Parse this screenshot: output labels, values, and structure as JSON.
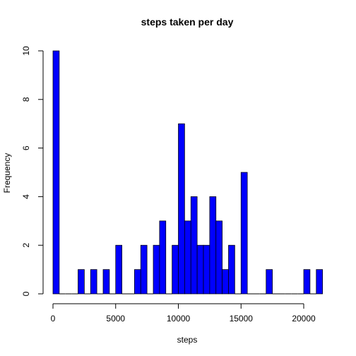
{
  "chart_data": {
    "type": "bar",
    "title": "steps taken per day",
    "xlabel": "steps",
    "ylabel": "Frequency",
    "bin_width": 500,
    "x_start": 0,
    "xlim": [
      0,
      21500
    ],
    "ylim": [
      0,
      10
    ],
    "x_ticks": [
      0,
      5000,
      10000,
      15000,
      20000
    ],
    "y_ticks": [
      0,
      2,
      4,
      6,
      8,
      10
    ],
    "values": [
      10,
      0,
      0,
      0,
      1,
      0,
      1,
      0,
      1,
      0,
      2,
      0,
      0,
      1,
      2,
      0,
      2,
      3,
      0,
      2,
      7,
      3,
      4,
      2,
      2,
      4,
      3,
      1,
      2,
      0,
      5,
      0,
      0,
      0,
      1,
      0,
      0,
      0,
      0,
      0,
      1,
      0,
      1
    ],
    "bar_color": "#0000ff",
    "grid": false
  }
}
